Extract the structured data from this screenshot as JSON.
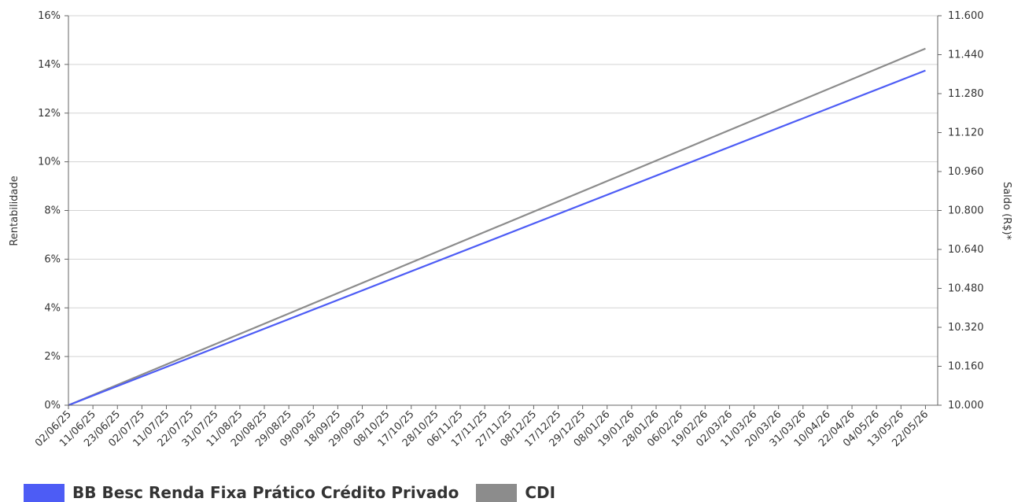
{
  "colors": {
    "fund": "#4d5cf5",
    "cdi": "#8c8c8c",
    "grid": "#d3d3d3",
    "axis": "#666666"
  },
  "chart_data": {
    "type": "line",
    "ylabel": "Rentabilidade",
    "y2label": "Saldo (R$)*",
    "ylim": [
      0,
      16
    ],
    "y_ticks": [
      "0%",
      "2%",
      "4%",
      "6%",
      "8%",
      "10%",
      "12%",
      "14%",
      "16%"
    ],
    "y2lim": [
      10000,
      11600
    ],
    "y2_ticks": [
      "10.000",
      "10.160",
      "10.320",
      "10.480",
      "10.640",
      "10.800",
      "10.960",
      "11.120",
      "11.280",
      "11.440",
      "11.600"
    ],
    "x_ticks": [
      "02/06/25",
      "11/06/25",
      "23/06/25",
      "02/07/25",
      "11/07/25",
      "22/07/25",
      "31/07/25",
      "11/08/25",
      "20/08/25",
      "29/08/25",
      "09/09/25",
      "18/09/25",
      "29/09/25",
      "08/10/25",
      "17/10/25",
      "28/10/25",
      "06/11/25",
      "17/11/25",
      "27/11/25",
      "08/12/25",
      "17/12/25",
      "29/12/25",
      "08/01/26",
      "19/01/26",
      "28/01/26",
      "06/02/26",
      "19/02/26",
      "02/03/26",
      "11/03/26",
      "20/03/26",
      "31/03/26",
      "10/04/26",
      "22/04/26",
      "04/05/26",
      "13/05/26",
      "22/05/26"
    ],
    "grid": true,
    "legend_position": "bottom-left",
    "series": [
      {
        "name": "BB Besc Renda Fixa Prático Crédito Privado",
        "x": [
          "02/06/25",
          "22/05/26"
        ],
        "values": [
          0,
          13.75
        ]
      },
      {
        "name": "CDI",
        "x": [
          "02/06/25",
          "22/05/26"
        ],
        "values": [
          0,
          14.65
        ]
      }
    ]
  }
}
